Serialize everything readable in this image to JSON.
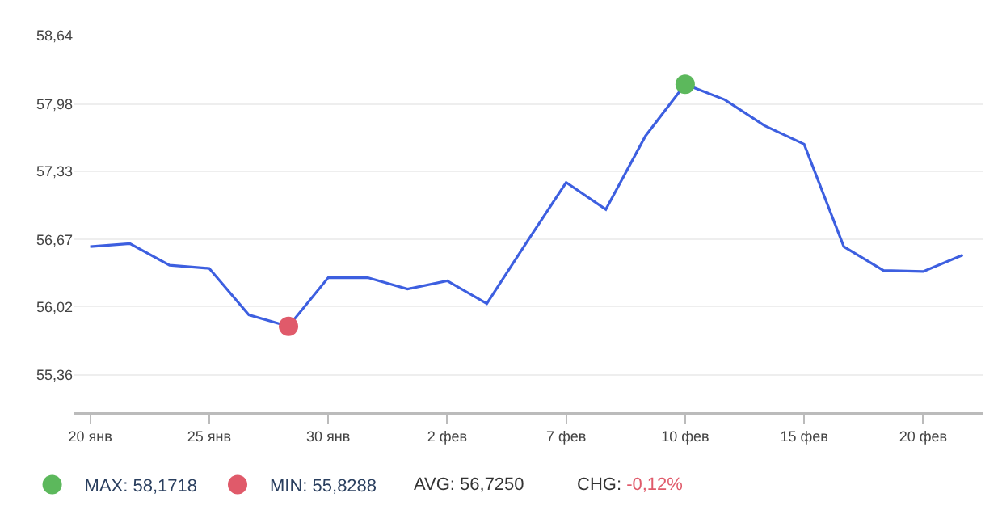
{
  "chart_data": {
    "type": "line",
    "categories": [
      "20 янв",
      null,
      null,
      "25 янв",
      null,
      null,
      "30 янв",
      null,
      null,
      "2 фев",
      null,
      null,
      "7 фев",
      null,
      null,
      "10 фев",
      null,
      null,
      "15 фев",
      null,
      null,
      "20 фев",
      null
    ],
    "series": [
      {
        "color": "#3d5fe0",
        "values": [
          56.6,
          56.63,
          56.42,
          56.39,
          55.94,
          55.83,
          56.3,
          56.3,
          56.19,
          56.27,
          56.05,
          56.64,
          57.22,
          56.96,
          57.67,
          58.17,
          58.02,
          57.77,
          57.59,
          56.6,
          56.37,
          56.36,
          56.52
        ]
      },
      {
        "type": "scatter",
        "name": "MAX: 58,1718",
        "color": "#5cb85c",
        "marker": "circle",
        "values": [
          null,
          null,
          null,
          null,
          null,
          null,
          null,
          null,
          null,
          null,
          null,
          null,
          null,
          null,
          null,
          58.17,
          null,
          null,
          null,
          null,
          null,
          null,
          null
        ]
      },
      {
        "type": "scatter",
        "name": "MIN: 55,8288",
        "color": "#e05a6a",
        "marker": "circle",
        "values": [
          null,
          null,
          null,
          null,
          null,
          55.83,
          null,
          null,
          null,
          null,
          null,
          null,
          null,
          null,
          null,
          null,
          null,
          null,
          null,
          null,
          null,
          null,
          null
        ]
      }
    ],
    "annotations": [
      "AVG: 56,7250",
      "CHG: -0,12%"
    ],
    "ylim": [
      55.0,
      58.64
    ],
    "yticks": [
      {
        "value": 55.36,
        "label": "55,36"
      },
      {
        "value": 56.02,
        "label": "56,02"
      },
      {
        "value": 56.67,
        "label": "56,67"
      },
      {
        "value": 57.33,
        "label": "57,33"
      },
      {
        "value": 57.98,
        "label": "57,98"
      },
      {
        "value": 58.64,
        "label": "58,64"
      }
    ],
    "grid": "y",
    "legend": "bottom left",
    "marker": "none",
    "line_style": "solid"
  }
}
